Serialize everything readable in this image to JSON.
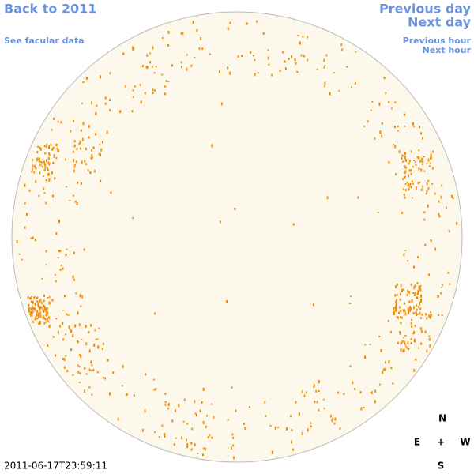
{
  "nav": {
    "back_link": "Back to 2011",
    "facular_link": "See facular data",
    "previous_day": "Previous day",
    "next_day": "Next day",
    "previous_hour": "Previous hour",
    "next_hour": "Next hour"
  },
  "timestamp": "2011-06-17T23:59:11",
  "compass": {
    "north": "N",
    "east": "E",
    "center": "+",
    "west": "W",
    "south": "S"
  }
}
